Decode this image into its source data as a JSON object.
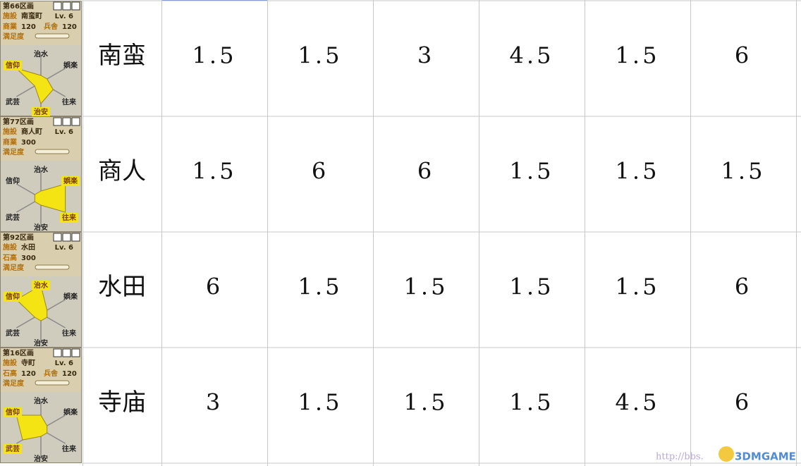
{
  "radar_labels": [
    "治水",
    "娯楽",
    "往来",
    "治安",
    "武芸",
    "信仰"
  ],
  "satisfaction_label": "満足度",
  "panels": [
    {
      "district": "第66区画",
      "facility_label": "施設",
      "facility": "南蛮町",
      "level": "Lv. 6",
      "stats": [
        {
          "label": "商業",
          "value": 120
        },
        {
          "label": "兵舎",
          "value": 120
        }
      ],
      "highlight": [
        5,
        3
      ]
    },
    {
      "district": "第77区画",
      "facility_label": "施設",
      "facility": "商人町",
      "level": "Lv. 6",
      "stats": [
        {
          "label": "商業",
          "value": 300
        }
      ],
      "highlight": [
        1,
        2
      ]
    },
    {
      "district": "第92区画",
      "facility_label": "施設",
      "facility": "水田",
      "level": "Lv. 6",
      "stats": [
        {
          "label": "石高",
          "value": 300
        }
      ],
      "highlight": [
        0,
        5
      ]
    },
    {
      "district": "第16区画",
      "facility_label": "施設",
      "facility": "寺町",
      "level": "Lv. 6",
      "stats": [
        {
          "label": "石高",
          "value": 120
        },
        {
          "label": "兵舎",
          "value": 120
        }
      ],
      "highlight": [
        5,
        4
      ]
    }
  ],
  "table": {
    "rows": [
      {
        "name": "南蛮",
        "values": [
          1.5,
          1.5,
          3,
          4.5,
          1.5,
          6
        ]
      },
      {
        "name": "商人",
        "values": [
          1.5,
          6,
          6,
          1.5,
          1.5,
          1.5
        ]
      },
      {
        "name": "水田",
        "values": [
          6,
          1.5,
          1.5,
          1.5,
          1.5,
          6
        ]
      },
      {
        "name": "寺庙",
        "values": [
          3,
          1.5,
          1.5,
          1.5,
          4.5,
          6
        ]
      }
    ]
  },
  "watermark": {
    "url": "http://bbs.",
    "brand": "3DMGAME"
  }
}
